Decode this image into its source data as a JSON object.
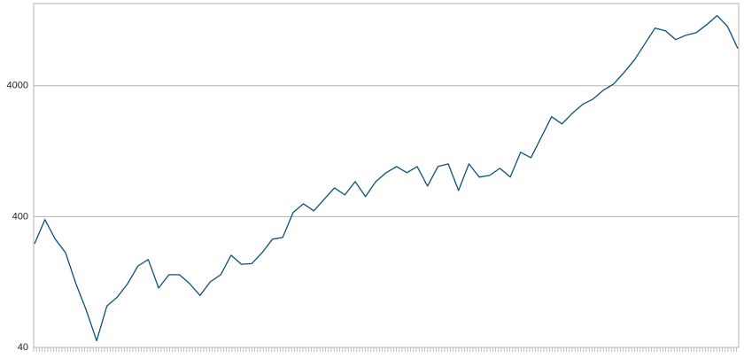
{
  "chart_data": {
    "type": "line",
    "log_scale": true,
    "grid": true,
    "ylim": [
      40,
      17000
    ],
    "yticks": [
      40,
      400,
      4000
    ],
    "series": [
      {
        "color": "#0d4f7c",
        "values": [
          248,
          379,
          269,
          212,
          123,
          77,
          45,
          83,
          97,
          123,
          168,
          188,
          114,
          144,
          144,
          123,
          100,
          127,
          144,
          203,
          173,
          175,
          212,
          269,
          277,
          430,
          501,
          443,
          542,
          664,
          586,
          741,
          569,
          741,
          867,
          966,
          867,
          966,
          685,
          966,
          1012,
          634,
          1012,
          802,
          826,
          935,
          802,
          1241,
          1129,
          1618,
          2318,
          2044,
          2467,
          2885,
          3163,
          3698,
          4130,
          5059,
          6295,
          8336,
          11040,
          10520,
          9016,
          9735,
          10200,
          11750,
          13740,
          11380,
          7706
        ]
      }
    ]
  }
}
